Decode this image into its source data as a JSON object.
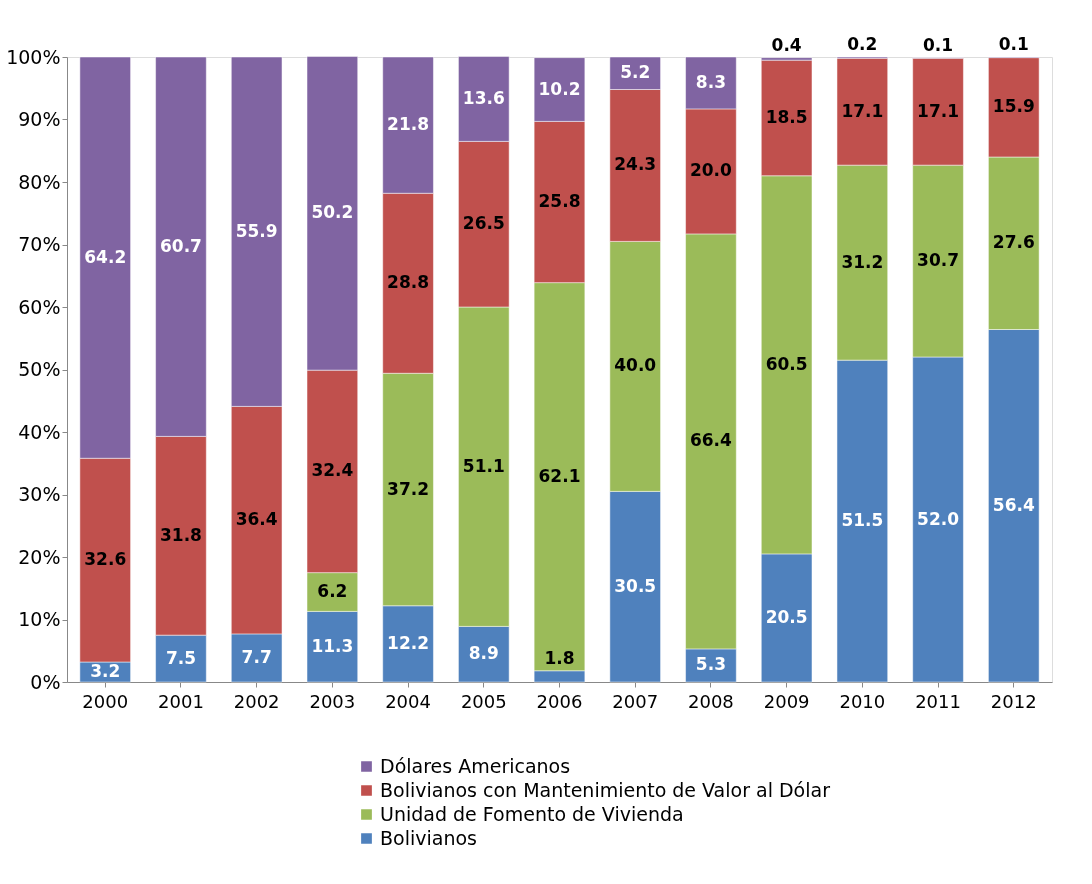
{
  "chart_data": {
    "type": "bar",
    "stacked": true,
    "categories": [
      "2000",
      "2001",
      "2002",
      "2003",
      "2004",
      "2005",
      "2006",
      "2007",
      "2008",
      "2009",
      "2010",
      "2011",
      "2012"
    ],
    "series": [
      {
        "name": "Bolivianos",
        "color": "#4f81bd",
        "values": [
          3.2,
          7.5,
          7.7,
          11.3,
          12.2,
          8.9,
          1.8,
          30.5,
          5.3,
          20.5,
          51.5,
          52.0,
          56.4
        ],
        "value_labels": [
          "3.2",
          "7.5",
          "7.7",
          "11.3",
          "12.2",
          "8.9",
          "1.8",
          "30.5",
          "5.3",
          "20.5",
          "51.5",
          "52.0",
          "56.4"
        ]
      },
      {
        "name": "Unidad de Fomento de Vivienda",
        "color": "#9bbb59",
        "values": [
          null,
          null,
          null,
          6.2,
          37.2,
          51.1,
          62.1,
          40.0,
          66.4,
          60.5,
          31.2,
          30.7,
          27.6
        ],
        "value_labels": [
          null,
          null,
          null,
          "6.2",
          "37.2",
          "51.1",
          "62.1",
          "40.0",
          "66.4",
          "60.5",
          "31.2",
          "30.7",
          "27.6"
        ]
      },
      {
        "name": "Bolivianos con Mantenimiento de Valor al Dólar",
        "color": "#c0504d",
        "values": [
          32.6,
          31.8,
          36.4,
          32.4,
          28.8,
          26.5,
          25.8,
          24.3,
          20.0,
          18.5,
          17.1,
          17.1,
          15.9
        ],
        "value_labels": [
          "32.6",
          "31.8",
          "36.4",
          "32.4",
          "28.8",
          "26.5",
          "25.8",
          "24.3",
          "20.0",
          "18.5",
          "17.1",
          "17.1",
          "15.9"
        ]
      },
      {
        "name": "Dólares Americanos",
        "color": "#8064a2",
        "values": [
          64.2,
          60.7,
          55.9,
          50.2,
          21.8,
          13.6,
          10.2,
          5.2,
          8.3,
          0.4,
          0.2,
          0.1,
          0.1
        ],
        "value_labels": [
          "64.2",
          "60.7",
          "55.9",
          "50.2",
          "21.8",
          "13.6",
          "10.2",
          "5.2",
          "8.3",
          "0.4",
          "0.2",
          "0.1",
          "0.1"
        ]
      }
    ],
    "ylim": [
      0,
      100
    ],
    "yticks": [
      {
        "value": 0,
        "label": "0%"
      },
      {
        "value": 10,
        "label": "10%"
      },
      {
        "value": 20,
        "label": "20%"
      },
      {
        "value": 30,
        "label": "30%"
      },
      {
        "value": 40,
        "label": "40%"
      },
      {
        "value": 50,
        "label": "50%"
      },
      {
        "value": 60,
        "label": "60%"
      },
      {
        "value": 70,
        "label": "70%"
      },
      {
        "value": 80,
        "label": "80%"
      },
      {
        "value": 90,
        "label": "90%"
      },
      {
        "value": 100,
        "label": "100%"
      }
    ],
    "grid": false,
    "legend": "bottom"
  }
}
